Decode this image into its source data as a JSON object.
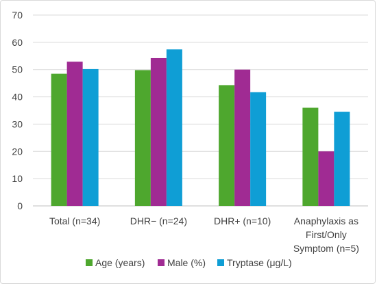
{
  "chart_data": {
    "type": "bar",
    "title": "",
    "xlabel": "",
    "ylabel": "",
    "ylim": [
      0,
      70
    ],
    "yticks": [
      0,
      10,
      20,
      30,
      40,
      50,
      60,
      70
    ],
    "grid": true,
    "legend_position": "bottom",
    "categories": [
      [
        "Total (n=34)"
      ],
      [
        "DHR− (n=24)"
      ],
      [
        "DHR+ (n=10)"
      ],
      [
        "Anaphylaxis as",
        "First/Only",
        "Symptom (n=5)"
      ]
    ],
    "series": [
      {
        "name": "Age (years)",
        "color": "#4ea72e",
        "values": [
          48.5,
          49.8,
          44.3,
          36
        ]
      },
      {
        "name": "Male (%)",
        "color": "#a02b93",
        "values": [
          52.9,
          54.2,
          50,
          20
        ]
      },
      {
        "name": "Tryptase (μg/L)",
        "color": "#0f9ed5",
        "values": [
          50.2,
          57.4,
          41.7,
          34.5
        ]
      }
    ]
  }
}
